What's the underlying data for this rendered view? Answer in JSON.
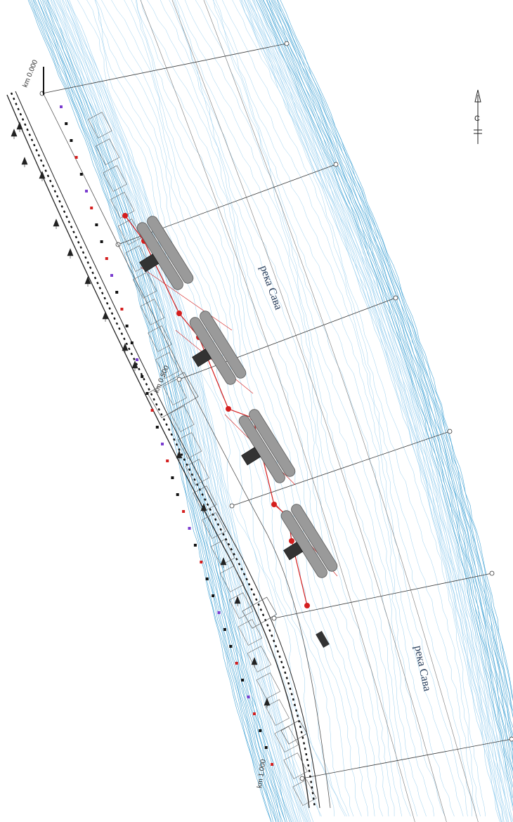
{
  "map": {
    "river_labels": [
      "река Сава",
      "река Сава"
    ],
    "km_labels": [
      "km 0.000",
      "km 0.500",
      "km 1.000"
    ],
    "north_label": "С",
    "barges_count": 4,
    "colors": {
      "water_contour": "#4aa6d6",
      "water_contour_light": "#9bd0ef",
      "pontoon": "#9a9a9a",
      "pontoon_edge": "#5a5a5a",
      "utility_line": "#d41e1e",
      "road_line": "#222222",
      "cross_section": "#3a3a3a",
      "marker_purple": "#7a3ccf",
      "marker_red": "#d41e1e"
    }
  }
}
